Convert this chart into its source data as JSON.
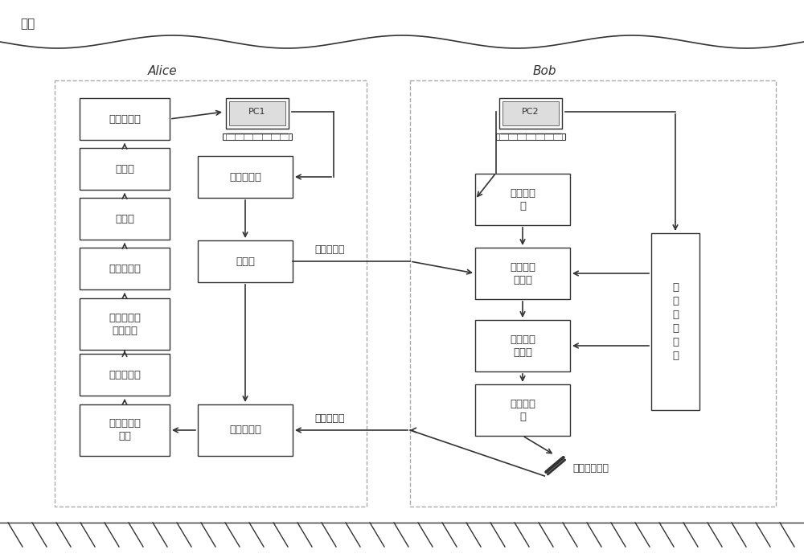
{
  "bg_color": "#ffffff",
  "line_color": "#333333",
  "box_face": "#ffffff",
  "box_edge": "#333333",
  "border_dash": "#aaaaaa",
  "sea_label": "海面",
  "alice_label": "Alice",
  "bob_label": "Bob",
  "forward_label": "前向水信道",
  "backward_label": "反向水信道",
  "faraday_label": "法拉第旋转镜",
  "pc1_label": "PC1",
  "pc2_label": "PC2",
  "alice_col1": [
    "数据分析仪",
    "解码器",
    "解调器",
    "低通滤波器",
    "自动增益控\n制放大器",
    "跨阻放大器",
    "平衡零差探\n测器"
  ],
  "alice_col2_pulse": "脉冲激光器",
  "alice_col2_beam": "分束器",
  "alice_col2_polar": "偏振耦合器",
  "bob_col1": [
    "直流稳压\n源",
    "电光强度\n调制器",
    "电光相位\n调制器",
    "光学放大\n器"
  ],
  "rng_label": "随\n机\n数\n生\n成\n器"
}
